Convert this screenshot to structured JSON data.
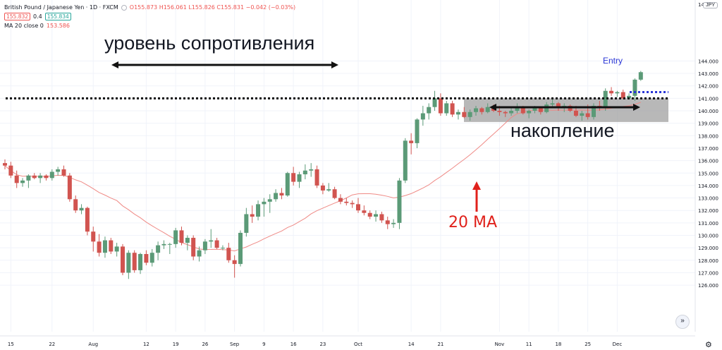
{
  "header": {
    "symbol": "British Pound / Japanese Yen · 1D · FXCM",
    "sell_price": "155.832",
    "spread": "0.4",
    "buy_price": "155.834",
    "ohlc": "O155.873 H156.061 L155.826 C155.831 −0.042 (−0.03%)",
    "ma_label": "MA 20 close 0",
    "ma_value": "153.586"
  },
  "currency_badge": "JPY",
  "controls": {
    "scroll_icon": "double-chevron-down-icon",
    "settings_icon": "gear-icon"
  },
  "colors": {
    "up": "#5b9a77",
    "down": "#d15450",
    "ma": "#ef8a86",
    "annotation_red": "#e0211b",
    "entry_blue": "#2a36d6",
    "box_fill": "#9a9a9a",
    "grid": "#f0f3fa"
  },
  "annotations": {
    "resistance": "уровень сопротивления",
    "consolidation": "накопление",
    "ma20": "20 MA",
    "entry": "Entry"
  },
  "chart_data": {
    "type": "candlestick",
    "title": "British Pound / Japanese Yen · 1D · FXCM",
    "ylim": [
      125.5,
      145.0
    ],
    "y_ticks": [
      126,
      127,
      128,
      129,
      130,
      131,
      132,
      133,
      134,
      135,
      136,
      137,
      138,
      139,
      140,
      141,
      142,
      143,
      144
    ],
    "y_tick_labels": [
      "126.000",
      "127.000",
      "128.000",
      "129.000",
      "130.000",
      "131.000",
      "132.000",
      "133.000",
      "134.000",
      "135.000",
      "136.000",
      "137.000",
      "138.000",
      "139.000",
      "140.000",
      "141.000",
      "142.000",
      "143.000",
      "144.000"
    ],
    "top_tick_label": "145",
    "x_tick_labels": [
      "15",
      "22",
      "Aug",
      "12",
      "19",
      "26",
      "Sep",
      "9",
      "16",
      "23",
      "Oct",
      "14",
      "21",
      "Nov",
      "11",
      "18",
      "25",
      "Dec"
    ],
    "x_tick_candle_index": [
      1,
      8,
      15,
      24,
      29,
      34,
      39,
      44,
      49,
      54,
      60,
      69,
      74,
      84,
      89,
      94,
      99,
      104
    ],
    "resistance_level": 141.0,
    "consolidation_range": [
      139.1,
      141.0
    ],
    "entry_level": 141.5,
    "candles": [
      {
        "o": 135.8,
        "h": 136.1,
        "l": 135.3,
        "c": 135.6
      },
      {
        "o": 135.6,
        "h": 135.9,
        "l": 134.6,
        "c": 134.8
      },
      {
        "o": 134.8,
        "h": 135.2,
        "l": 133.8,
        "c": 134.2
      },
      {
        "o": 134.2,
        "h": 134.6,
        "l": 133.9,
        "c": 134.4
      },
      {
        "o": 134.4,
        "h": 134.9,
        "l": 133.8,
        "c": 134.8
      },
      {
        "o": 134.8,
        "h": 135.0,
        "l": 134.5,
        "c": 134.6
      },
      {
        "o": 134.6,
        "h": 135.0,
        "l": 134.2,
        "c": 134.8
      },
      {
        "o": 134.8,
        "h": 134.9,
        "l": 134.4,
        "c": 134.6
      },
      {
        "o": 134.6,
        "h": 135.3,
        "l": 134.4,
        "c": 135.1
      },
      {
        "o": 135.1,
        "h": 135.5,
        "l": 134.8,
        "c": 135.3
      },
      {
        "o": 135.3,
        "h": 135.6,
        "l": 134.7,
        "c": 134.8
      },
      {
        "o": 134.8,
        "h": 135.0,
        "l": 132.7,
        "c": 132.9
      },
      {
        "o": 132.9,
        "h": 133.2,
        "l": 131.8,
        "c": 132.0
      },
      {
        "o": 132.0,
        "h": 132.5,
        "l": 131.7,
        "c": 132.2
      },
      {
        "o": 132.2,
        "h": 132.3,
        "l": 130.0,
        "c": 130.3
      },
      {
        "o": 130.3,
        "h": 130.7,
        "l": 128.7,
        "c": 129.5
      },
      {
        "o": 129.5,
        "h": 130.1,
        "l": 128.3,
        "c": 128.6
      },
      {
        "o": 128.6,
        "h": 129.9,
        "l": 128.2,
        "c": 129.6
      },
      {
        "o": 129.6,
        "h": 129.8,
        "l": 128.5,
        "c": 128.7
      },
      {
        "o": 128.7,
        "h": 129.4,
        "l": 128.3,
        "c": 129.1
      },
      {
        "o": 129.1,
        "h": 129.3,
        "l": 126.8,
        "c": 127.0
      },
      {
        "o": 127.0,
        "h": 128.8,
        "l": 126.5,
        "c": 128.6
      },
      {
        "o": 128.6,
        "h": 128.8,
        "l": 127.0,
        "c": 127.2
      },
      {
        "o": 127.2,
        "h": 128.6,
        "l": 126.9,
        "c": 128.5
      },
      {
        "o": 128.5,
        "h": 128.8,
        "l": 127.6,
        "c": 127.8
      },
      {
        "o": 127.8,
        "h": 128.9,
        "l": 127.5,
        "c": 128.6
      },
      {
        "o": 128.6,
        "h": 129.5,
        "l": 128.0,
        "c": 129.2
      },
      {
        "o": 129.2,
        "h": 129.6,
        "l": 128.9,
        "c": 129.3
      },
      {
        "o": 129.3,
        "h": 129.4,
        "l": 128.5,
        "c": 129.3
      },
      {
        "o": 129.3,
        "h": 130.6,
        "l": 129.0,
        "c": 130.4
      },
      {
        "o": 130.4,
        "h": 130.7,
        "l": 129.2,
        "c": 129.4
      },
      {
        "o": 129.4,
        "h": 130.0,
        "l": 128.8,
        "c": 129.8
      },
      {
        "o": 129.8,
        "h": 130.0,
        "l": 128.0,
        "c": 128.3
      },
      {
        "o": 128.3,
        "h": 129.1,
        "l": 127.9,
        "c": 128.8
      },
      {
        "o": 128.8,
        "h": 129.7,
        "l": 128.5,
        "c": 129.5
      },
      {
        "o": 129.5,
        "h": 130.5,
        "l": 129.0,
        "c": 129.6
      },
      {
        "o": 129.6,
        "h": 129.8,
        "l": 128.9,
        "c": 129.0
      },
      {
        "o": 129.0,
        "h": 129.2,
        "l": 128.8,
        "c": 129.0
      },
      {
        "o": 129.0,
        "h": 129.4,
        "l": 127.8,
        "c": 128.0
      },
      {
        "o": 128.0,
        "h": 128.4,
        "l": 126.6,
        "c": 127.7
      },
      {
        "o": 127.7,
        "h": 130.4,
        "l": 127.5,
        "c": 130.2
      },
      {
        "o": 130.2,
        "h": 132.2,
        "l": 129.9,
        "c": 131.7
      },
      {
        "o": 131.7,
        "h": 132.4,
        "l": 131.0,
        "c": 131.5
      },
      {
        "o": 131.5,
        "h": 132.8,
        "l": 131.2,
        "c": 132.5
      },
      {
        "o": 132.5,
        "h": 133.0,
        "l": 131.5,
        "c": 132.7
      },
      {
        "o": 132.7,
        "h": 133.3,
        "l": 131.8,
        "c": 132.9
      },
      {
        "o": 132.9,
        "h": 133.7,
        "l": 132.7,
        "c": 133.4
      },
      {
        "o": 133.4,
        "h": 133.8,
        "l": 132.9,
        "c": 133.2
      },
      {
        "o": 133.2,
        "h": 135.1,
        "l": 133.1,
        "c": 135.0
      },
      {
        "o": 135.0,
        "h": 135.5,
        "l": 134.0,
        "c": 134.3
      },
      {
        "o": 134.3,
        "h": 135.1,
        "l": 133.8,
        "c": 134.9
      },
      {
        "o": 134.9,
        "h": 135.7,
        "l": 134.5,
        "c": 135.2
      },
      {
        "o": 135.2,
        "h": 135.8,
        "l": 134.7,
        "c": 135.3
      },
      {
        "o": 135.3,
        "h": 135.6,
        "l": 133.8,
        "c": 134.0
      },
      {
        "o": 134.0,
        "h": 134.2,
        "l": 133.3,
        "c": 133.6
      },
      {
        "o": 133.6,
        "h": 134.2,
        "l": 133.5,
        "c": 133.7
      },
      {
        "o": 133.7,
        "h": 133.9,
        "l": 132.9,
        "c": 133.0
      },
      {
        "o": 133.0,
        "h": 133.3,
        "l": 132.5,
        "c": 132.7
      },
      {
        "o": 132.7,
        "h": 133.0,
        "l": 132.4,
        "c": 132.6
      },
      {
        "o": 132.6,
        "h": 132.8,
        "l": 132.2,
        "c": 132.5
      },
      {
        "o": 132.5,
        "h": 133.0,
        "l": 131.8,
        "c": 132.0
      },
      {
        "o": 132.0,
        "h": 132.4,
        "l": 131.6,
        "c": 131.8
      },
      {
        "o": 131.8,
        "h": 132.0,
        "l": 131.3,
        "c": 131.5
      },
      {
        "o": 131.5,
        "h": 132.0,
        "l": 131.1,
        "c": 131.7
      },
      {
        "o": 131.7,
        "h": 131.9,
        "l": 131.0,
        "c": 131.2
      },
      {
        "o": 131.2,
        "h": 131.5,
        "l": 130.5,
        "c": 130.9
      },
      {
        "o": 130.9,
        "h": 131.3,
        "l": 130.6,
        "c": 131.0
      },
      {
        "o": 131.0,
        "h": 134.6,
        "l": 130.5,
        "c": 134.4
      },
      {
        "o": 134.4,
        "h": 137.8,
        "l": 134.2,
        "c": 137.6
      },
      {
        "o": 137.6,
        "h": 138.2,
        "l": 136.5,
        "c": 137.4
      },
      {
        "o": 137.4,
        "h": 139.4,
        "l": 137.0,
        "c": 139.3
      },
      {
        "o": 139.3,
        "h": 140.4,
        "l": 138.8,
        "c": 139.8
      },
      {
        "o": 139.8,
        "h": 140.6,
        "l": 139.3,
        "c": 140.3
      },
      {
        "o": 140.3,
        "h": 141.6,
        "l": 140.0,
        "c": 141.0
      },
      {
        "o": 141.0,
        "h": 141.4,
        "l": 139.6,
        "c": 139.8
      },
      {
        "o": 139.8,
        "h": 140.8,
        "l": 139.6,
        "c": 140.6
      },
      {
        "o": 140.6,
        "h": 140.8,
        "l": 139.5,
        "c": 139.7
      },
      {
        "o": 139.7,
        "h": 140.1,
        "l": 139.3,
        "c": 139.9
      },
      {
        "o": 139.9,
        "h": 140.3,
        "l": 139.4,
        "c": 139.5
      },
      {
        "o": 139.5,
        "h": 140.1,
        "l": 139.2,
        "c": 139.9
      },
      {
        "o": 139.9,
        "h": 140.4,
        "l": 139.6,
        "c": 140.2
      },
      {
        "o": 140.2,
        "h": 140.3,
        "l": 139.7,
        "c": 139.9
      },
      {
        "o": 139.9,
        "h": 140.6,
        "l": 139.8,
        "c": 140.3
      },
      {
        "o": 140.3,
        "h": 140.5,
        "l": 139.9,
        "c": 140.0
      },
      {
        "o": 140.0,
        "h": 140.4,
        "l": 139.6,
        "c": 139.9
      },
      {
        "o": 139.9,
        "h": 140.0,
        "l": 139.5,
        "c": 139.8
      },
      {
        "o": 139.8,
        "h": 140.3,
        "l": 139.6,
        "c": 140.0
      },
      {
        "o": 140.0,
        "h": 140.6,
        "l": 139.8,
        "c": 140.3
      },
      {
        "o": 140.3,
        "h": 140.4,
        "l": 139.7,
        "c": 139.8
      },
      {
        "o": 139.8,
        "h": 140.1,
        "l": 139.4,
        "c": 140.0
      },
      {
        "o": 140.0,
        "h": 140.4,
        "l": 139.8,
        "c": 140.2
      },
      {
        "o": 140.2,
        "h": 140.3,
        "l": 139.7,
        "c": 139.9
      },
      {
        "o": 139.9,
        "h": 140.7,
        "l": 139.8,
        "c": 140.5
      },
      {
        "o": 140.5,
        "h": 140.9,
        "l": 140.3,
        "c": 140.6
      },
      {
        "o": 140.6,
        "h": 140.7,
        "l": 140.0,
        "c": 140.2
      },
      {
        "o": 140.2,
        "h": 140.6,
        "l": 139.9,
        "c": 140.4
      },
      {
        "o": 140.4,
        "h": 140.5,
        "l": 139.9,
        "c": 140.0
      },
      {
        "o": 140.0,
        "h": 140.4,
        "l": 139.5,
        "c": 139.6
      },
      {
        "o": 139.6,
        "h": 140.0,
        "l": 139.2,
        "c": 139.8
      },
      {
        "o": 139.8,
        "h": 140.5,
        "l": 139.3,
        "c": 139.5
      },
      {
        "o": 139.5,
        "h": 140.6,
        "l": 139.3,
        "c": 140.4
      },
      {
        "o": 140.4,
        "h": 140.8,
        "l": 140.0,
        "c": 140.2
      },
      {
        "o": 140.2,
        "h": 141.8,
        "l": 140.0,
        "c": 141.6
      },
      {
        "o": 141.6,
        "h": 141.9,
        "l": 141.2,
        "c": 141.4
      },
      {
        "o": 141.4,
        "h": 141.6,
        "l": 141.1,
        "c": 141.5
      },
      {
        "o": 141.5,
        "h": 141.7,
        "l": 140.9,
        "c": 141.0
      },
      {
        "o": 141.0,
        "h": 141.4,
        "l": 140.9,
        "c": 141.2
      },
      {
        "o": 141.2,
        "h": 142.6,
        "l": 140.8,
        "c": 142.5
      },
      {
        "o": 142.5,
        "h": 143.2,
        "l": 142.4,
        "c": 143.1
      }
    ]
  }
}
